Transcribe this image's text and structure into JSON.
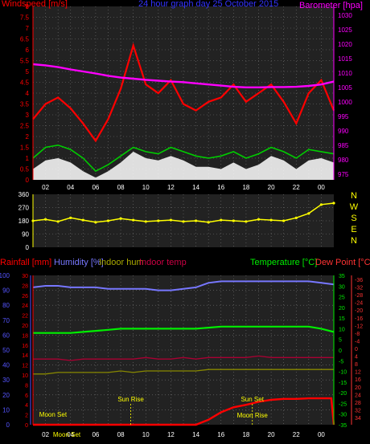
{
  "chart_data": [
    {
      "type": "line",
      "panel": "wind",
      "title": "24 hour graph day  25 October 2015",
      "left_axis_label": "Windspeed [m/s]",
      "right_axis_label": "Barometer [hpa]",
      "x_ticks": [
        "02",
        "04",
        "06",
        "08",
        "10",
        "12",
        "14",
        "16",
        "18",
        "20",
        "22",
        "00"
      ],
      "left_ticks": [
        "0",
        "0.5",
        "1",
        "1.5",
        "2",
        "2.5",
        "3",
        "3.5",
        "4",
        "4.5",
        "5",
        "5.5",
        "6",
        "6.5",
        "7",
        "7.5",
        "8"
      ],
      "right_ticks": [
        "975",
        "980",
        "985",
        "990",
        "995",
        "1000",
        "1005",
        "1010",
        "1015",
        "1020",
        "1025",
        "1030"
      ],
      "ylim_left": [
        0,
        8
      ],
      "ylim_right": [
        973,
        1033
      ],
      "colors": {
        "gust": "#ff0000",
        "average": "#ffffff",
        "wind": "#00cc00",
        "barometer": "#ff00ff",
        "title": "#3333ff",
        "left_label": "#ff0000",
        "right_label": "#ff00ff"
      },
      "series": [
        {
          "key": "barometer",
          "axis": "right",
          "x": [
            0,
            1,
            2,
            3,
            4,
            5,
            6,
            7,
            8,
            9,
            10,
            11,
            12,
            13,
            14,
            15,
            16,
            17,
            18,
            19,
            20,
            21,
            22,
            23,
            24
          ],
          "values": [
            1013,
            1012.6,
            1012,
            1011.2,
            1010.5,
            1009.8,
            1009,
            1008.4,
            1008,
            1007.6,
            1007.3,
            1007,
            1006.8,
            1006.4,
            1006,
            1005.6,
            1005.2,
            1005,
            1005,
            1005.1,
            1005.1,
            1005.2,
            1005.5,
            1006,
            1007
          ]
        },
        {
          "key": "wind",
          "axis": "left",
          "x": [
            0,
            1,
            2,
            3,
            4,
            5,
            6,
            7,
            8,
            9,
            10,
            11,
            12,
            13,
            14,
            15,
            16,
            17,
            18,
            19,
            20,
            21,
            22,
            23,
            24
          ],
          "values": [
            1.0,
            1.5,
            1.6,
            1.4,
            1.0,
            0.4,
            0.7,
            1.1,
            1.5,
            1.3,
            1.2,
            1.5,
            1.3,
            1.1,
            1.0,
            1.1,
            1.3,
            1.0,
            1.2,
            1.5,
            1.3,
            1.0,
            1.4,
            1.3,
            1.2
          ]
        },
        {
          "key": "gust",
          "axis": "left",
          "x": [
            0,
            1,
            2,
            3,
            4,
            5,
            6,
            7,
            8,
            9,
            10,
            11,
            12,
            13,
            14,
            15,
            16,
            17,
            18,
            19,
            20,
            21,
            22,
            23,
            24
          ],
          "values": [
            2.8,
            3.5,
            3.8,
            3.3,
            2.6,
            1.8,
            2.8,
            4.2,
            6.2,
            4.4,
            4.0,
            4.6,
            3.5,
            3.2,
            3.6,
            3.8,
            4.4,
            3.6,
            4.0,
            4.4,
            3.6,
            2.6,
            4.0,
            4.6,
            3.2
          ]
        },
        {
          "key": "average",
          "axis": "left",
          "x": [
            0,
            1,
            2,
            3,
            4,
            5,
            6,
            7,
            8,
            9,
            10,
            11,
            12,
            13,
            14,
            15,
            16,
            17,
            18,
            19,
            20,
            21,
            22,
            23,
            24
          ],
          "values": [
            0.5,
            0.9,
            1.0,
            0.8,
            0.4,
            0.1,
            0.4,
            0.8,
            1.3,
            1.0,
            0.9,
            1.1,
            0.9,
            0.6,
            0.6,
            0.5,
            0.8,
            0.5,
            0.7,
            1.1,
            0.9,
            0.5,
            0.9,
            1.0,
            0.8
          ]
        }
      ]
    },
    {
      "type": "scatter",
      "panel": "direction",
      "left_ticks": [
        "0",
        "90",
        "180",
        "270",
        "360"
      ],
      "compass": [
        "N",
        "W",
        "S",
        "E",
        "N"
      ],
      "x_ticks": [
        "02",
        "04",
        "06",
        "08",
        "10",
        "12",
        "14",
        "16",
        "18",
        "20",
        "22",
        "00"
      ],
      "ylim": [
        0,
        360
      ],
      "colors": {
        "direction": "#ffff00"
      },
      "series": [
        {
          "key": "direction",
          "x": [
            0,
            1,
            2,
            3,
            4,
            5,
            6,
            7,
            8,
            9,
            10,
            11,
            12,
            13,
            14,
            15,
            16,
            17,
            18,
            19,
            20,
            21,
            22,
            23,
            24
          ],
          "values": [
            180,
            190,
            175,
            200,
            185,
            170,
            180,
            195,
            185,
            175,
            180,
            185,
            175,
            180,
            170,
            185,
            180,
            175,
            190,
            185,
            180,
            200,
            230,
            290,
            300
          ]
        }
      ]
    },
    {
      "type": "line",
      "panel": "temperature",
      "labels": {
        "rain": "Rainfall [mm]",
        "humidity": "Humidity [%]",
        "indoor_hum": "Indoor hum",
        "indoor_temp": "Indoor temp",
        "temperature": "Temperature [°C]",
        "dew": "Dew Point [°C]"
      },
      "x_ticks": [
        "02",
        "04",
        "06",
        "08",
        "10",
        "12",
        "14",
        "16",
        "18",
        "20",
        "22",
        "00"
      ],
      "humidity_ticks": [
        "0",
        "10",
        "20",
        "30",
        "40",
        "50",
        "60",
        "70",
        "80",
        "90",
        "100"
      ],
      "rain_ticks": [
        "0",
        "2",
        "4",
        "6",
        "8",
        "10",
        "12",
        "14",
        "16",
        "18",
        "20",
        "22",
        "24",
        "26",
        "28",
        "30"
      ],
      "temp_ticks": [
        "-35",
        "-30",
        "-25",
        "-20",
        "-15",
        "-10",
        "-5",
        "0",
        "5",
        "10",
        "15",
        "20",
        "25",
        "30",
        "35"
      ],
      "dew_ticks": [
        "-36",
        "-32",
        "-28",
        "-24",
        "-20",
        "-16",
        "-12",
        "-8",
        "-4",
        "0",
        "4",
        "8",
        "12",
        "16",
        "20",
        "24",
        "28",
        "32",
        "34"
      ],
      "annotations": [
        {
          "label": "Moon Set",
          "x": 1.6
        },
        {
          "label": "Sun Rise",
          "x": 7.8
        },
        {
          "label": "Sun Set",
          "x": 17.5
        },
        {
          "label": "Moon Rise",
          "x": 17.5
        }
      ],
      "colors": {
        "temperature": "#00ee00",
        "humidity": "#7777ff",
        "indoor_hum": "#888800",
        "indoor_temp": "#aa0033",
        "rain": "#ff0000",
        "dew": "#ff0000",
        "axis_temp": "#00ee00",
        "axis_hum": "#5555ff",
        "axis_rain": "#ff0000",
        "axis_dew": "#ff3333"
      },
      "series": [
        {
          "key": "humidity",
          "axis": "humidity",
          "x": [
            0,
            1,
            2,
            3,
            4,
            5,
            6,
            7,
            8,
            9,
            10,
            11,
            12,
            13,
            14,
            15,
            16,
            17,
            18,
            19,
            20,
            21,
            22,
            23,
            24
          ],
          "values": [
            92,
            93,
            93,
            92,
            92,
            92,
            91,
            91,
            91,
            91,
            90,
            90,
            91,
            92,
            95,
            96,
            96,
            96,
            96,
            96,
            96,
            96,
            96,
            95,
            94
          ]
        },
        {
          "key": "temperature",
          "axis": "temp",
          "x": [
            0,
            1,
            2,
            3,
            4,
            5,
            6,
            7,
            8,
            9,
            10,
            11,
            12,
            13,
            14,
            15,
            16,
            17,
            18,
            19,
            20,
            21,
            22,
            23,
            24
          ],
          "values": [
            8,
            8,
            8,
            8,
            8.5,
            9,
            9.5,
            10,
            10,
            10,
            10,
            10,
            10,
            10,
            10.5,
            11,
            11,
            11,
            11,
            11,
            11,
            11,
            11,
            10,
            8.5
          ]
        },
        {
          "key": "indoor_temp",
          "axis": "humidity",
          "x": [
            0,
            1,
            2,
            3,
            4,
            5,
            6,
            7,
            8,
            9,
            10,
            11,
            12,
            13,
            14,
            15,
            16,
            17,
            18,
            19,
            20,
            21,
            22,
            23,
            24
          ],
          "values": [
            44,
            44,
            44,
            43,
            44,
            44,
            44,
            44,
            44,
            45,
            44,
            44,
            45,
            44,
            45,
            45,
            45,
            45,
            46,
            45,
            45,
            45,
            45,
            45,
            45
          ]
        },
        {
          "key": "indoor_hum",
          "axis": "humidity",
          "x": [
            0,
            1,
            2,
            3,
            4,
            5,
            6,
            7,
            8,
            9,
            10,
            11,
            12,
            13,
            14,
            15,
            16,
            17,
            18,
            19,
            20,
            21,
            22,
            23,
            24
          ],
          "values": [
            34,
            34,
            35,
            35,
            35,
            35,
            35,
            36,
            35,
            36,
            36,
            36,
            36,
            36,
            37,
            37,
            37,
            37,
            37,
            37,
            37,
            37,
            37,
            37,
            37
          ]
        },
        {
          "key": "rain",
          "axis": "rain",
          "x": [
            0,
            1,
            2,
            3,
            4,
            5,
            6,
            7,
            8,
            9,
            10,
            11,
            12,
            13,
            14,
            15,
            16,
            17,
            18,
            19,
            20,
            21,
            22,
            23,
            23.8,
            24
          ],
          "values": [
            0,
            0,
            0,
            0,
            0,
            0,
            0,
            0,
            0,
            0,
            0,
            0,
            0,
            0,
            1,
            2.5,
            3.5,
            4,
            4.6,
            5,
            5.2,
            5.2,
            5.3,
            5.3,
            5.3,
            0
          ]
        }
      ]
    }
  ]
}
